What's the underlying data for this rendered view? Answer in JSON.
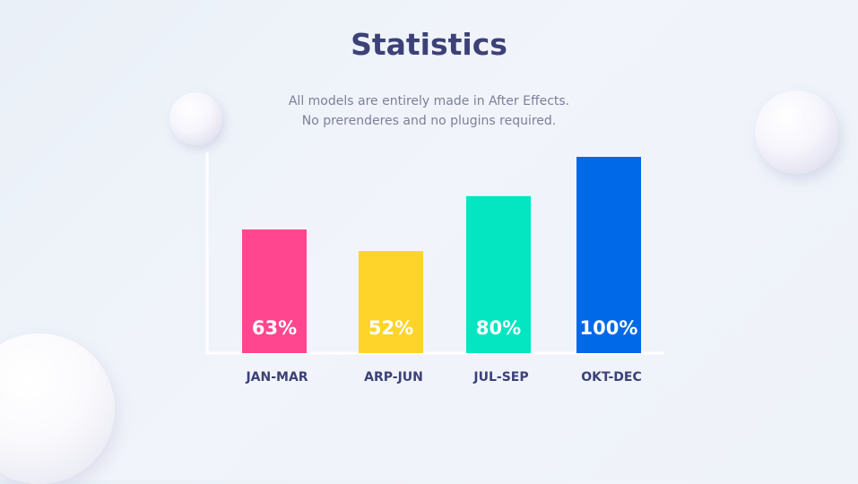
{
  "title": "Statistics",
  "subtitle_lines": [
    "All models are entirely made in After Effects.",
    "No prerenderes and no plugins required."
  ],
  "colors": {
    "title": "#3c4177",
    "subtitle": "#7d7f99",
    "axis": "#ffffff",
    "category_label": "#3c4177",
    "value_label": "#ffffff"
  },
  "chart_data": {
    "type": "bar",
    "categories": [
      "JAN-MAR",
      "ARP-JUN",
      "JUL-SEP",
      "OKT-DEC"
    ],
    "values": [
      63,
      52,
      80,
      100
    ],
    "value_labels": [
      "63%",
      "52%",
      "80%",
      "100%"
    ],
    "bar_colors": [
      "#ff468e",
      "#ffd42a",
      "#04e5c1",
      "#0069e8"
    ],
    "ylim": [
      0,
      100
    ],
    "ylabel": "",
    "xlabel": "",
    "grid": false,
    "legend": "none"
  }
}
